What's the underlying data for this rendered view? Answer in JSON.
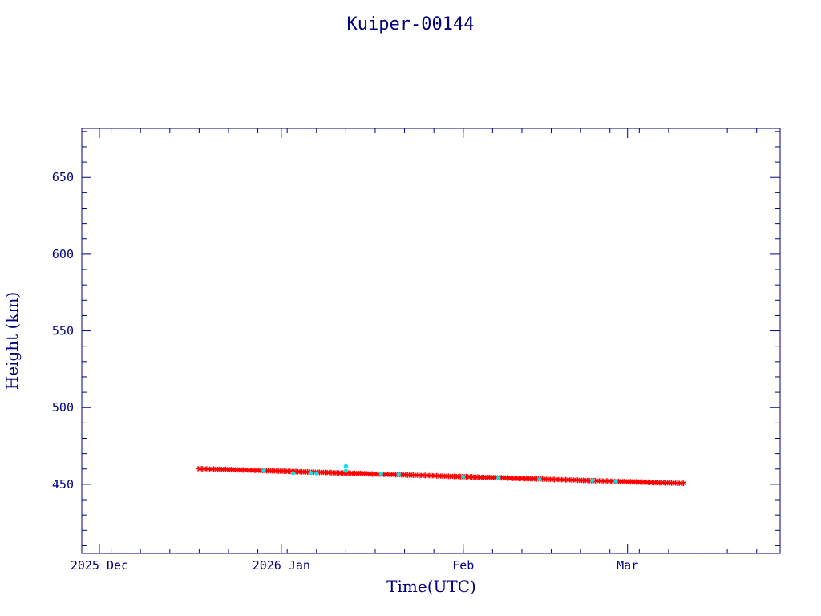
{
  "chart_data": {
    "type": "scatter",
    "title": "Kuiper-00144",
    "xlabel": "Time(UTC)",
    "ylabel": "Height (km)",
    "x_axis": {
      "type": "date",
      "range": [
        "2025-11-28",
        "2026-03-27"
      ],
      "tick_labels": [
        {
          "date": "2025-12-01",
          "label": "2025 Dec"
        },
        {
          "date": "2026-01-01",
          "label": "2026 Jan"
        },
        {
          "date": "2026-02-01",
          "label": "Feb"
        },
        {
          "date": "2026-03-01",
          "label": "Mar"
        }
      ]
    },
    "y_axis": {
      "range": [
        405,
        682
      ],
      "ticks": [
        450,
        500,
        550,
        600,
        650
      ]
    },
    "grid": false,
    "colors": {
      "axis": "#000080",
      "primary_series": "#ff0000",
      "secondary_series": "#00e5ee"
    },
    "series": [
      {
        "color": "#ff0000",
        "marker": "star",
        "points": [
          {
            "x": "2025-12-18",
            "y": 460.2
          },
          {
            "x": "2025-12-19",
            "y": 460.1
          },
          {
            "x": "2025-12-20",
            "y": 460.0
          },
          {
            "x": "2025-12-21",
            "y": 459.9
          },
          {
            "x": "2025-12-22",
            "y": 459.8
          },
          {
            "x": "2025-12-23",
            "y": 459.6
          },
          {
            "x": "2025-12-24",
            "y": 459.5
          },
          {
            "x": "2025-12-25",
            "y": 459.4
          },
          {
            "x": "2025-12-26",
            "y": 459.3
          },
          {
            "x": "2025-12-27",
            "y": 459.2
          },
          {
            "x": "2025-12-28",
            "y": 459.1
          },
          {
            "x": "2025-12-29",
            "y": 458.9
          },
          {
            "x": "2025-12-30",
            "y": 458.8
          },
          {
            "x": "2025-12-31",
            "y": 458.7
          },
          {
            "x": "2026-01-01",
            "y": 458.6
          },
          {
            "x": "2026-01-02",
            "y": 458.5
          },
          {
            "x": "2026-01-03",
            "y": 458.4
          },
          {
            "x": "2026-01-04",
            "y": 458.2
          },
          {
            "x": "2026-01-05",
            "y": 458.1
          },
          {
            "x": "2026-01-06",
            "y": 458.0
          },
          {
            "x": "2026-01-07",
            "y": 457.9
          },
          {
            "x": "2026-01-08",
            "y": 457.8
          },
          {
            "x": "2026-01-09",
            "y": 457.7
          },
          {
            "x": "2026-01-10",
            "y": 457.5
          },
          {
            "x": "2026-01-11",
            "y": 457.4
          },
          {
            "x": "2026-01-12",
            "y": 457.3
          },
          {
            "x": "2026-01-13",
            "y": 457.2
          },
          {
            "x": "2026-01-14",
            "y": 457.1
          },
          {
            "x": "2026-01-15",
            "y": 457.0
          },
          {
            "x": "2026-01-16",
            "y": 456.8
          },
          {
            "x": "2026-01-17",
            "y": 456.7
          },
          {
            "x": "2026-01-18",
            "y": 456.6
          },
          {
            "x": "2026-01-19",
            "y": 456.5
          },
          {
            "x": "2026-01-20",
            "y": 456.4
          },
          {
            "x": "2026-01-21",
            "y": 456.3
          },
          {
            "x": "2026-01-22",
            "y": 456.1
          },
          {
            "x": "2026-01-23",
            "y": 456.0
          },
          {
            "x": "2026-01-24",
            "y": 455.9
          },
          {
            "x": "2026-01-25",
            "y": 455.8
          },
          {
            "x": "2026-01-26",
            "y": 455.7
          },
          {
            "x": "2026-01-27",
            "y": 455.6
          },
          {
            "x": "2026-01-28",
            "y": 455.4
          },
          {
            "x": "2026-01-29",
            "y": 455.3
          },
          {
            "x": "2026-01-30",
            "y": 455.2
          },
          {
            "x": "2026-01-31",
            "y": 455.1
          },
          {
            "x": "2026-02-01",
            "y": 455.0
          },
          {
            "x": "2026-02-02",
            "y": 454.9
          },
          {
            "x": "2026-02-03",
            "y": 454.7
          },
          {
            "x": "2026-02-04",
            "y": 454.6
          },
          {
            "x": "2026-02-05",
            "y": 454.5
          },
          {
            "x": "2026-02-06",
            "y": 454.4
          },
          {
            "x": "2026-02-07",
            "y": 454.3
          },
          {
            "x": "2026-02-08",
            "y": 454.2
          },
          {
            "x": "2026-02-09",
            "y": 454.0
          },
          {
            "x": "2026-02-10",
            "y": 453.9
          },
          {
            "x": "2026-02-11",
            "y": 453.8
          },
          {
            "x": "2026-02-12",
            "y": 453.7
          },
          {
            "x": "2026-02-13",
            "y": 453.6
          },
          {
            "x": "2026-02-14",
            "y": 453.5
          },
          {
            "x": "2026-02-15",
            "y": 453.3
          },
          {
            "x": "2026-02-16",
            "y": 453.2
          },
          {
            "x": "2026-02-17",
            "y": 453.1
          },
          {
            "x": "2026-02-18",
            "y": 453.0
          },
          {
            "x": "2026-02-19",
            "y": 452.9
          },
          {
            "x": "2026-02-20",
            "y": 452.8
          },
          {
            "x": "2026-02-21",
            "y": 452.6
          },
          {
            "x": "2026-02-22",
            "y": 452.5
          },
          {
            "x": "2026-02-23",
            "y": 452.4
          },
          {
            "x": "2026-02-24",
            "y": 452.3
          },
          {
            "x": "2026-02-25",
            "y": 452.2
          },
          {
            "x": "2026-02-26",
            "y": 452.1
          },
          {
            "x": "2026-02-27",
            "y": 451.9
          },
          {
            "x": "2026-02-28",
            "y": 451.8
          },
          {
            "x": "2026-03-01",
            "y": 451.7
          },
          {
            "x": "2026-03-02",
            "y": 451.6
          },
          {
            "x": "2026-03-03",
            "y": 451.5
          },
          {
            "x": "2026-03-04",
            "y": 451.4
          },
          {
            "x": "2026-03-05",
            "y": 451.2
          },
          {
            "x": "2026-03-06",
            "y": 451.1
          },
          {
            "x": "2026-03-07",
            "y": 451.0
          },
          {
            "x": "2026-03-08",
            "y": 450.9
          },
          {
            "x": "2026-03-09",
            "y": 450.8
          },
          {
            "x": "2026-03-10",
            "y": 450.7
          }
        ]
      },
      {
        "color": "#00e5ee",
        "marker": "dot",
        "points": [
          {
            "x": "2025-12-29",
            "y": 459.0
          },
          {
            "x": "2026-01-03",
            "y": 457.3
          },
          {
            "x": "2026-01-06",
            "y": 457.5
          },
          {
            "x": "2026-01-07",
            "y": 457.2
          },
          {
            "x": "2026-01-12",
            "y": 461.8
          },
          {
            "x": "2026-01-12",
            "y": 458.8
          },
          {
            "x": "2026-01-18",
            "y": 457.0
          },
          {
            "x": "2026-01-21",
            "y": 456.4
          },
          {
            "x": "2026-02-01",
            "y": 455.0
          },
          {
            "x": "2026-02-07",
            "y": 454.1
          },
          {
            "x": "2026-02-14",
            "y": 453.3
          },
          {
            "x": "2026-02-23",
            "y": 452.5
          },
          {
            "x": "2026-02-27",
            "y": 452.0
          }
        ]
      }
    ]
  }
}
